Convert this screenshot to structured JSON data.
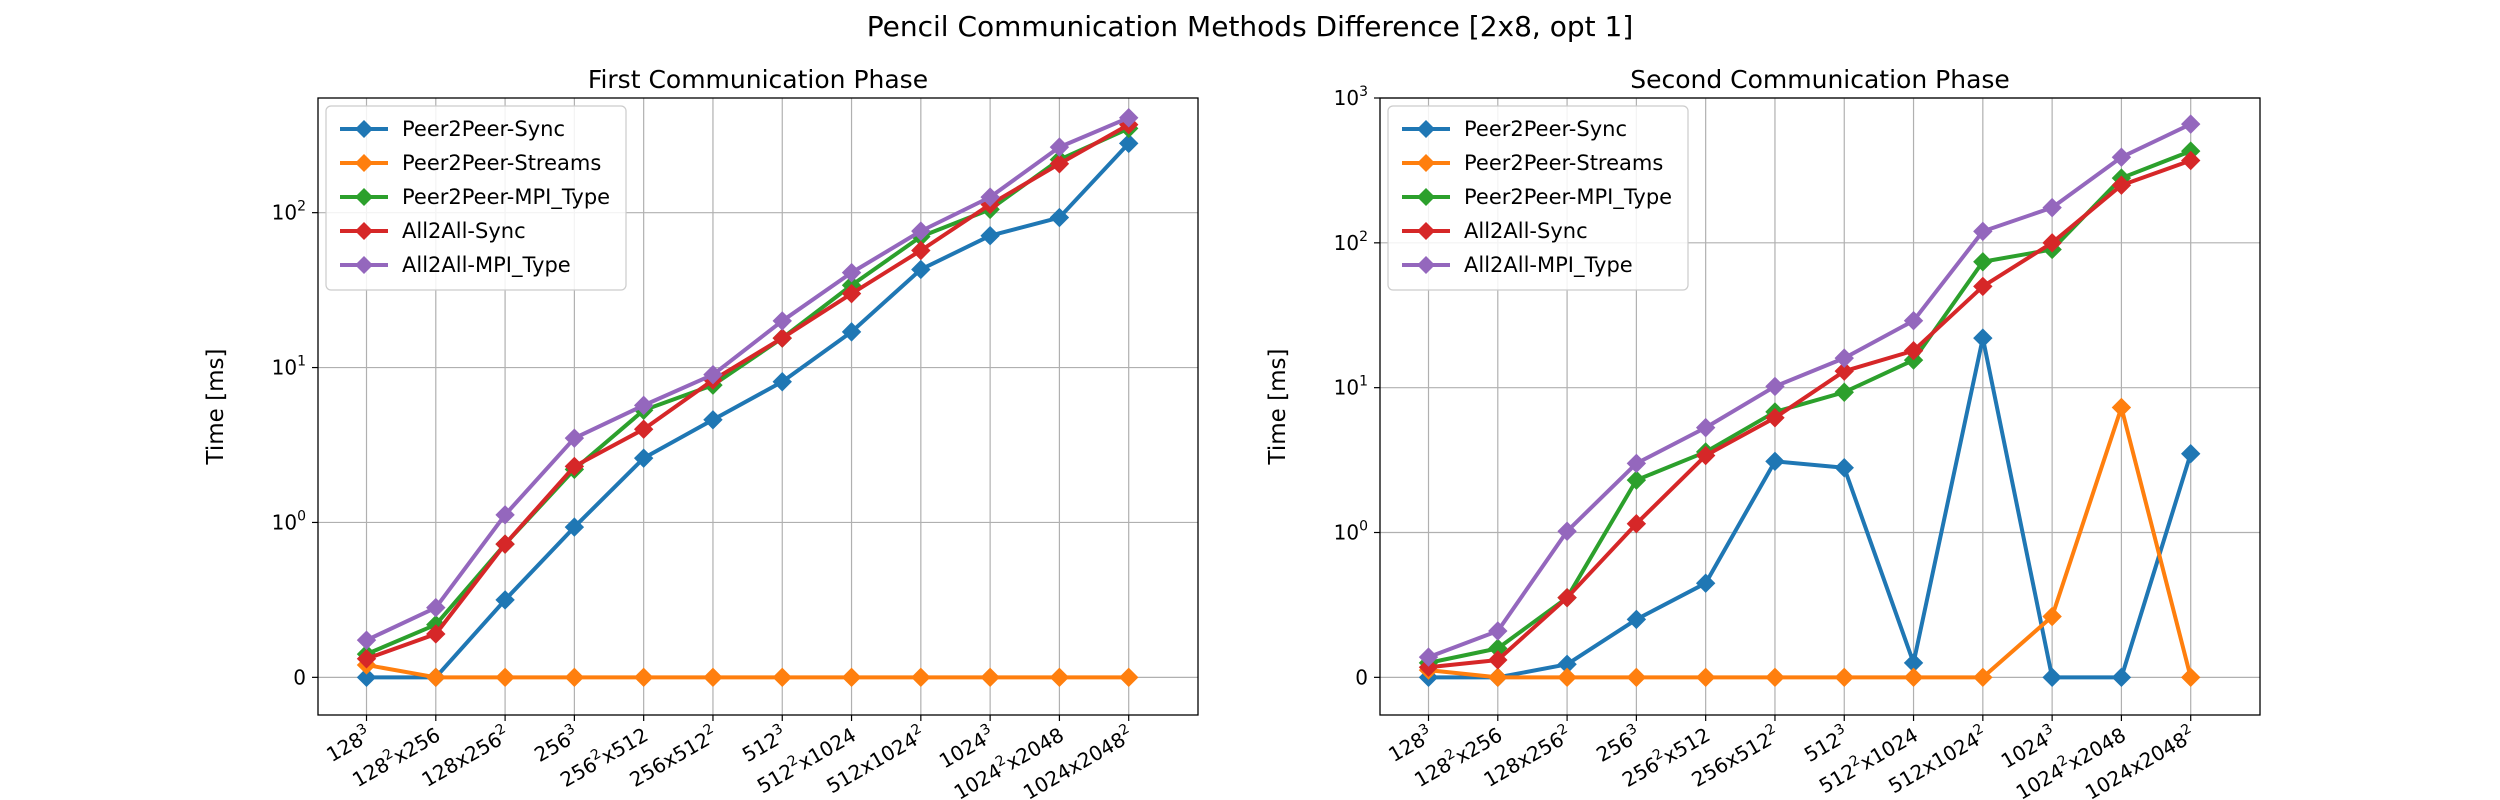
{
  "figure": {
    "title": "Pencil Communication Methods Difference [2x8, opt 1]"
  },
  "colors": {
    "Peer2Peer-Sync": "#1f77b4",
    "Peer2Peer-Streams": "#ff7f0e",
    "Peer2Peer-MPI_Type": "#2ca02c",
    "All2All-Sync": "#d62728",
    "All2All-MPI_Type": "#9467bd"
  },
  "chart_data": [
    {
      "type": "line",
      "title": "First Communication Phase",
      "xlabel": "",
      "ylabel": "Time [ms]",
      "yscale": "symlog",
      "ylim": [
        0,
        550
      ],
      "y_ticks": [
        0,
        1,
        10,
        100
      ],
      "y_tick_labels": [
        {
          "base": "0",
          "exp": ""
        },
        {
          "base": "10",
          "exp": "0"
        },
        {
          "base": "10",
          "exp": "1"
        },
        {
          "base": "10",
          "exp": "2"
        }
      ],
      "grid": true,
      "legend": "top-left",
      "categories": [
        {
          "base": "128",
          "sup": "3",
          "tail": ""
        },
        {
          "base": "128",
          "sup": "2",
          "tail": "x256"
        },
        {
          "base": "128x256",
          "sup": "2",
          "tail": ""
        },
        {
          "base": "256",
          "sup": "3",
          "tail": ""
        },
        {
          "base": "256",
          "sup": "2",
          "tail": "x512"
        },
        {
          "base": "256x512",
          "sup": "2",
          "tail": ""
        },
        {
          "base": "512",
          "sup": "3",
          "tail": ""
        },
        {
          "base": "512",
          "sup": "2",
          "tail": "x1024"
        },
        {
          "base": "512x1024",
          "sup": "2",
          "tail": ""
        },
        {
          "base": "1024",
          "sup": "3",
          "tail": ""
        },
        {
          "base": "1024",
          "sup": "2",
          "tail": "x2048"
        },
        {
          "base": "1024x2048",
          "sup": "2",
          "tail": ""
        }
      ],
      "series": [
        {
          "name": "Peer2Peer-Sync",
          "values": [
            0.0,
            0.0,
            0.5,
            0.97,
            2.6,
            4.6,
            8.1,
            17,
            43,
            71,
            93,
            280
          ]
        },
        {
          "name": "Peer2Peer-Streams",
          "values": [
            0.08,
            0.0,
            0.0,
            0.0,
            0.0,
            0.0,
            0.0,
            0.0,
            0.0,
            0.0,
            0.0,
            0.0
          ]
        },
        {
          "name": "Peer2Peer-MPI_Type",
          "values": [
            0.15,
            0.34,
            0.86,
            2.2,
            5.3,
            7.7,
            15.5,
            34,
            70,
            105,
            220,
            350
          ]
        },
        {
          "name": "All2All-Sync",
          "values": [
            0.12,
            0.28,
            0.86,
            2.3,
            4.0,
            8.3,
            15.5,
            30,
            57,
            113,
            207,
            370
          ]
        },
        {
          "name": "All2All-MPI_Type",
          "values": [
            0.24,
            0.45,
            1.12,
            3.5,
            5.7,
            9.0,
            20,
            41,
            76,
            126,
            265,
            410
          ]
        }
      ]
    },
    {
      "type": "line",
      "title": "Second Communication Phase",
      "xlabel": "",
      "ylabel": "Time [ms]",
      "yscale": "symlog",
      "ylim": [
        0,
        1000
      ],
      "y_ticks": [
        0,
        1,
        10,
        100,
        1000
      ],
      "y_tick_labels": [
        {
          "base": "0",
          "exp": ""
        },
        {
          "base": "10",
          "exp": "0"
        },
        {
          "base": "10",
          "exp": "1"
        },
        {
          "base": "10",
          "exp": "2"
        },
        {
          "base": "10",
          "exp": "3"
        }
      ],
      "grid": true,
      "legend": "top-left",
      "categories": [
        {
          "base": "128",
          "sup": "3",
          "tail": ""
        },
        {
          "base": "128",
          "sup": "2",
          "tail": "x256"
        },
        {
          "base": "128x256",
          "sup": "2",
          "tail": ""
        },
        {
          "base": "256",
          "sup": "3",
          "tail": ""
        },
        {
          "base": "256",
          "sup": "2",
          "tail": "x512"
        },
        {
          "base": "256x512",
          "sup": "2",
          "tail": ""
        },
        {
          "base": "512",
          "sup": "3",
          "tail": ""
        },
        {
          "base": "512",
          "sup": "2",
          "tail": "x1024"
        },
        {
          "base": "512x1024",
          "sup": "2",
          "tail": ""
        },
        {
          "base": "1024",
          "sup": "3",
          "tail": ""
        },
        {
          "base": "1024",
          "sup": "2",
          "tail": "x2048"
        },
        {
          "base": "1024x2048",
          "sup": "2",
          "tail": ""
        }
      ],
      "series": [
        {
          "name": "Peer2Peer-Sync",
          "values": [
            0.0,
            0.0,
            0.09,
            0.4,
            0.65,
            3.1,
            2.8,
            0.1,
            22,
            0.0,
            0.0,
            3.5
          ]
        },
        {
          "name": "Peer2Peer-Streams",
          "values": [
            0.05,
            0.0,
            0.0,
            0.0,
            0.0,
            0.0,
            0.0,
            0.0,
            0.0,
            0.42,
            7.3,
            0.0
          ]
        },
        {
          "name": "Peer2Peer-MPI_Type",
          "values": [
            0.1,
            0.2,
            0.55,
            2.3,
            3.6,
            6.8,
            9.3,
            15.5,
            74,
            90,
            280,
            430
          ]
        },
        {
          "name": "All2All-Sync",
          "values": [
            0.07,
            0.12,
            0.55,
            1.15,
            3.4,
            6.2,
            13,
            18,
            50,
            100,
            250,
            370
          ]
        },
        {
          "name": "All2All-MPI_Type",
          "values": [
            0.14,
            0.32,
            1.02,
            3.0,
            5.3,
            10.2,
            16,
            29,
            120,
            175,
            390,
            660
          ]
        }
      ]
    }
  ]
}
